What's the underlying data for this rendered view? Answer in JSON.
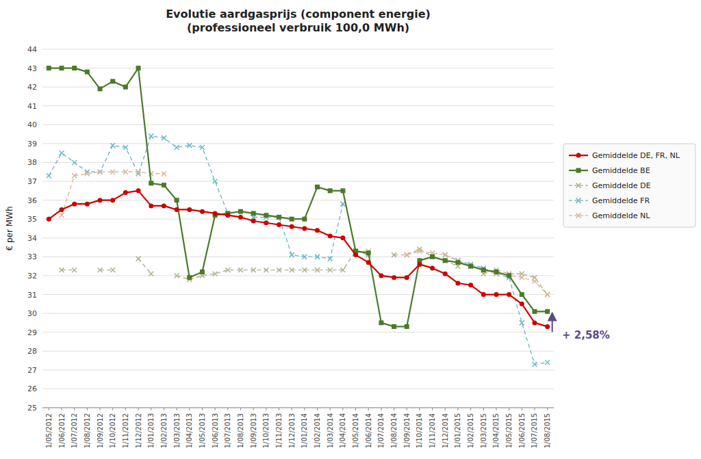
{
  "chart_data": {
    "type": "line",
    "title": "Evolutie aardgasprijs (component energie)\n(professioneel verbruik 100,0 MWh)",
    "y_label": "€ per MWh",
    "categories": [
      "1/05/2012",
      "1/06/2012",
      "1/07/2012",
      "1/08/2012",
      "1/09/2012",
      "1/10/2012",
      "1/11/2012",
      "1/12/2012",
      "1/01/2013",
      "1/02/2013",
      "1/03/2013",
      "1/04/2013",
      "1/05/2013",
      "1/06/2013",
      "1/07/2013",
      "1/08/2013",
      "1/09/2013",
      "1/10/2013",
      "1/11/2013",
      "1/12/2013",
      "1/01/2014",
      "1/02/2014",
      "1/03/2014",
      "1/04/2014",
      "1/05/2014",
      "1/06/2014",
      "1/07/2014",
      "1/08/2014",
      "1/09/2014",
      "1/10/2014",
      "1/11/2014",
      "1/12/2014",
      "1/01/2015",
      "1/02/2015",
      "1/03/2015",
      "1/04/2015",
      "1/05/2015",
      "1/06/2015",
      "1/07/2015",
      "1/08/2015"
    ],
    "series": [
      {
        "name": "Gemiddelde DE, FR, NL",
        "color": "#cc0000",
        "marker": "circle",
        "line_style": "solid",
        "values": [
          35.0,
          35.5,
          35.8,
          35.8,
          36.0,
          36.0,
          36.4,
          36.5,
          35.7,
          35.7,
          35.5,
          35.5,
          35.4,
          35.3,
          35.2,
          35.1,
          34.9,
          34.8,
          34.7,
          34.6,
          34.5,
          34.4,
          34.1,
          34.0,
          33.1,
          32.7,
          32.0,
          31.9,
          31.9,
          32.6,
          32.4,
          32.1,
          31.6,
          31.5,
          31.0,
          31.0,
          31.0,
          30.5,
          29.5,
          29.3
        ]
      },
      {
        "name": "Gemiddelde BE",
        "color": "#4a7a2a",
        "marker": "square",
        "line_style": "solid",
        "values": [
          43.0,
          43.0,
          43.0,
          42.8,
          41.9,
          42.3,
          42.0,
          43.0,
          36.9,
          36.8,
          36.0,
          31.9,
          32.2,
          35.2,
          35.3,
          35.4,
          35.3,
          35.2,
          35.1,
          35.0,
          35.0,
          36.7,
          36.5,
          36.5,
          33.3,
          33.2,
          29.5,
          29.3,
          29.3,
          32.8,
          33.0,
          32.8,
          32.7,
          32.5,
          32.3,
          32.2,
          32.0,
          31.0,
          30.1,
          30.1
        ]
      },
      {
        "name": "Gemiddelde DE",
        "color": "#b0b090",
        "marker": "x",
        "line_style": "dashed",
        "values": [
          null,
          32.3,
          32.3,
          null,
          32.3,
          32.3,
          null,
          32.9,
          32.1,
          null,
          32.0,
          31.8,
          32.0,
          32.1,
          32.3,
          32.3,
          32.3,
          32.3,
          32.3,
          32.3,
          32.3,
          32.3,
          32.3,
          32.3,
          33.3,
          33.1,
          null,
          33.1,
          33.1,
          33.4,
          33.0,
          32.8,
          32.5,
          null,
          32.1,
          32.3,
          32.1,
          32.1,
          31.9,
          31.0
        ]
      },
      {
        "name": "Gemiddelde FR",
        "color": "#70b8c8",
        "marker": "x",
        "line_style": "dashed",
        "values": [
          37.3,
          38.5,
          38.0,
          37.5,
          37.5,
          38.9,
          38.8,
          37.4,
          39.4,
          39.3,
          38.8,
          38.9,
          38.8,
          37.0,
          35.3,
          null,
          35.1,
          35.1,
          35.1,
          33.1,
          33.0,
          33.0,
          32.9,
          35.8,
          null,
          null,
          null,
          null,
          null,
          null,
          null,
          33.1,
          32.8,
          32.6,
          32.4,
          32.1,
          31.9,
          29.5,
          27.3,
          27.4
        ]
      },
      {
        "name": "Gemiddelde NL",
        "color": "#d8b898",
        "marker": "x",
        "line_style": "dashed",
        "values": [
          null,
          35.2,
          37.3,
          37.4,
          37.5,
          37.5,
          37.5,
          37.5,
          37.4,
          37.4,
          null,
          null,
          null,
          null,
          null,
          null,
          null,
          null,
          null,
          null,
          null,
          null,
          null,
          null,
          33.3,
          33.3,
          null,
          null,
          33.1,
          33.3,
          33.2,
          33.1,
          32.8,
          32.5,
          32.3,
          32.1,
          32.0,
          31.9,
          31.7,
          31.0
        ]
      }
    ],
    "ylim": [
      25,
      44
    ],
    "yticks": [
      25,
      26,
      27,
      28,
      29,
      30,
      31,
      32,
      33,
      34,
      35,
      36,
      37,
      38,
      39,
      40,
      41,
      42,
      43,
      44
    ],
    "grid": true,
    "legend": "right",
    "annotations": [
      {
        "text": "+ 2,58%",
        "color": "#5b4a8a"
      }
    ]
  }
}
